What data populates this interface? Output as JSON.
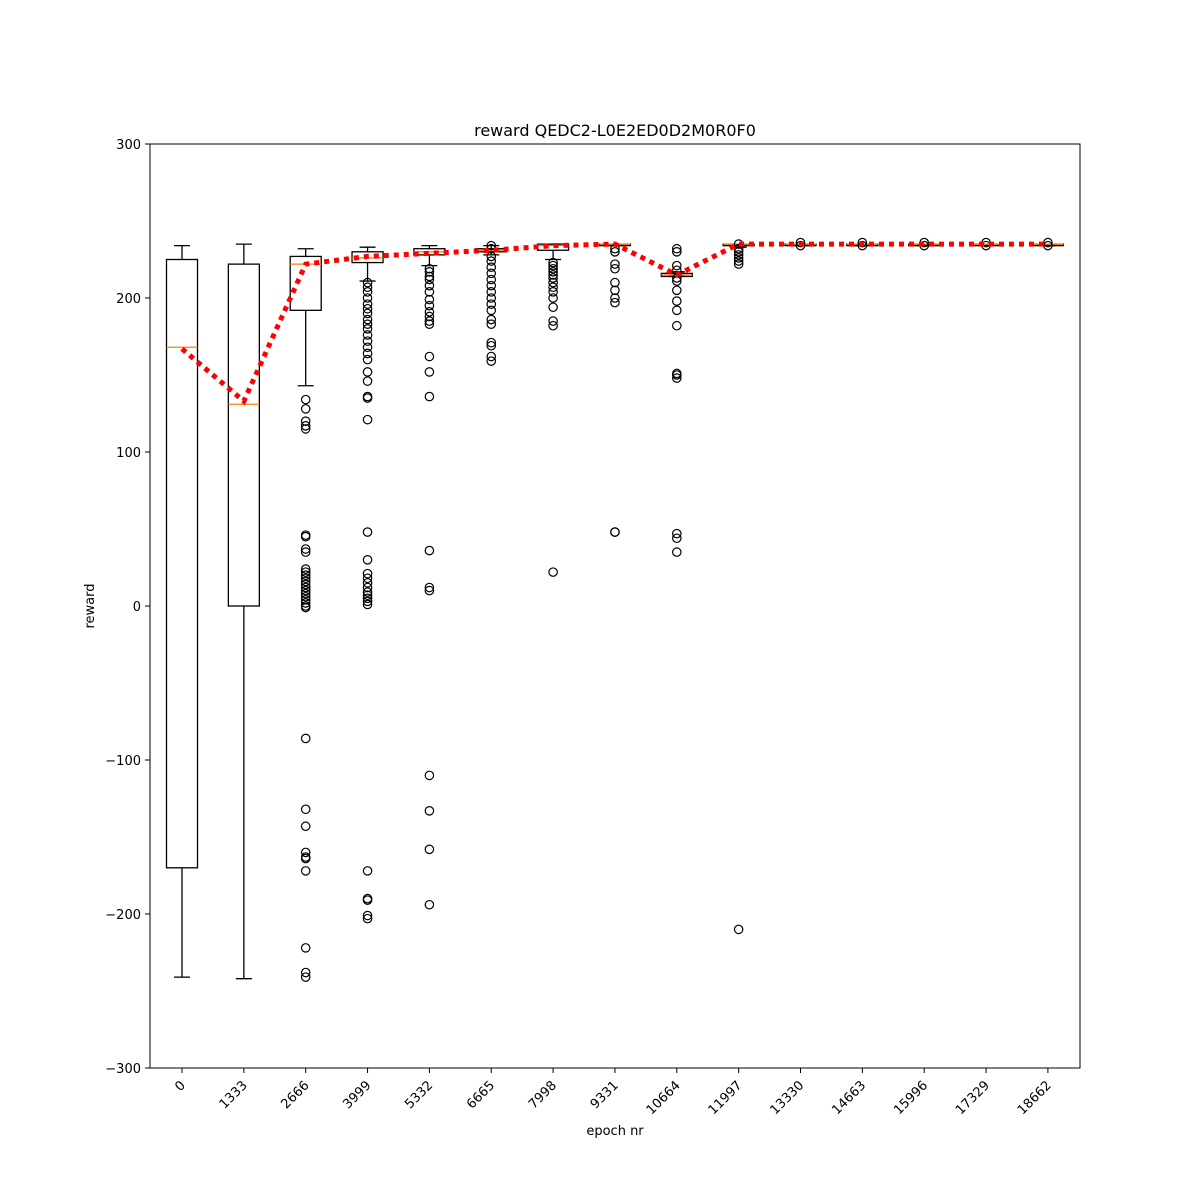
{
  "chart_data": {
    "type": "box",
    "title": "reward QEDC2-L0E2ED0D2M0R0F0",
    "xlabel": "epoch nr",
    "ylabel": "reward",
    "ylim": [
      -300,
      300
    ],
    "yticks": [
      -300,
      -200,
      -100,
      0,
      100,
      200,
      300
    ],
    "categories": [
      "0",
      "1333",
      "2666",
      "3999",
      "5332",
      "6665",
      "7998",
      "9331",
      "10664",
      "11997",
      "13330",
      "14663",
      "15996",
      "17329",
      "18662"
    ],
    "boxes": [
      {
        "q1": -170,
        "median": 168,
        "q3": 225,
        "whisker_low": -241,
        "whisker_high": 234,
        "outliers": []
      },
      {
        "q1": 0,
        "median": 131,
        "q3": 222,
        "whisker_low": -242,
        "whisker_high": 235,
        "outliers": []
      },
      {
        "q1": 192,
        "median": 222,
        "q3": 227,
        "whisker_low": 143,
        "whisker_high": 232,
        "outliers": [
          134,
          128,
          120,
          117,
          115,
          46,
          45,
          37,
          35,
          24,
          22,
          20,
          18,
          16,
          14,
          12,
          10,
          8,
          6,
          4,
          2,
          0,
          -1,
          -86,
          -132,
          -143,
          -160,
          -163,
          -164,
          -172,
          -222,
          -238,
          -241
        ]
      },
      {
        "q1": 223,
        "median": 226,
        "q3": 230,
        "whisker_low": 211,
        "whisker_high": 233,
        "outliers": [
          210,
          207,
          204,
          200,
          196,
          193,
          190,
          186,
          183,
          180,
          176,
          172,
          168,
          164,
          160,
          152,
          146,
          136,
          135,
          121,
          48,
          30,
          21,
          18,
          15,
          12,
          9,
          7,
          5,
          3,
          1,
          -172,
          -190,
          -191,
          -201,
          -203
        ]
      },
      {
        "q1": 228,
        "median": 230,
        "q3": 232,
        "whisker_low": 221,
        "whisker_high": 234,
        "outliers": [
          219,
          217,
          214,
          212,
          208,
          204,
          199,
          195,
          191,
          188,
          185,
          183,
          162,
          152,
          136,
          36,
          12,
          10,
          -110,
          -133,
          -158,
          -194
        ]
      },
      {
        "q1": 230,
        "median": 231,
        "q3": 232,
        "whisker_low": 228,
        "whisker_high": 234,
        "outliers": [
          234,
          232,
          227,
          224,
          220,
          216,
          212,
          208,
          204,
          200,
          196,
          192,
          186,
          183,
          171,
          169,
          162,
          159
        ]
      },
      {
        "q1": 231,
        "median": 234,
        "q3": 235,
        "whisker_low": 225,
        "whisker_high": 235,
        "outliers": [
          223,
          221,
          219,
          217,
          215,
          213,
          210,
          207,
          204,
          200,
          194,
          185,
          182,
          22
        ]
      },
      {
        "q1": 234,
        "median": 235,
        "q3": 235,
        "whisker_low": 234,
        "whisker_high": 235,
        "outliers": [
          232,
          230,
          222,
          219,
          210,
          205,
          200,
          197,
          48,
          48
        ]
      },
      {
        "q1": 214,
        "median": 215,
        "q3": 216,
        "whisker_low": 214,
        "whisker_high": 217,
        "outliers": [
          232,
          230,
          221,
          218,
          213,
          211,
          205,
          198,
          192,
          182,
          151,
          150,
          148,
          47,
          44,
          35
        ]
      },
      {
        "q1": 234,
        "median": 235,
        "q3": 235,
        "whisker_low": 233,
        "whisker_high": 235,
        "outliers": [
          235,
          232,
          230,
          228,
          226,
          224,
          222,
          -210
        ]
      },
      {
        "q1": 234,
        "median": 235,
        "q3": 235,
        "whisker_low": 234,
        "whisker_high": 235,
        "outliers": [
          236,
          234
        ]
      },
      {
        "q1": 234,
        "median": 235,
        "q3": 235,
        "whisker_low": 234,
        "whisker_high": 235,
        "outliers": [
          236,
          234
        ]
      },
      {
        "q1": 234,
        "median": 235,
        "q3": 235,
        "whisker_low": 234,
        "whisker_high": 235,
        "outliers": [
          236,
          234
        ]
      },
      {
        "q1": 234,
        "median": 235,
        "q3": 235,
        "whisker_low": 234,
        "whisker_high": 235,
        "outliers": [
          236,
          234
        ]
      },
      {
        "q1": 234,
        "median": 235,
        "q3": 235,
        "whisker_low": 234,
        "whisker_high": 235,
        "outliers": [
          236,
          234
        ]
      }
    ],
    "mean_line": [
      167,
      133,
      222,
      227,
      229,
      231,
      234,
      235,
      215,
      235,
      235,
      235,
      235,
      235,
      235
    ],
    "colors": {
      "box": "#000000",
      "median": "#ff7f0e",
      "mean_line": "#ff0000",
      "outlier": "#000000"
    },
    "grid": false,
    "legend": "none"
  }
}
